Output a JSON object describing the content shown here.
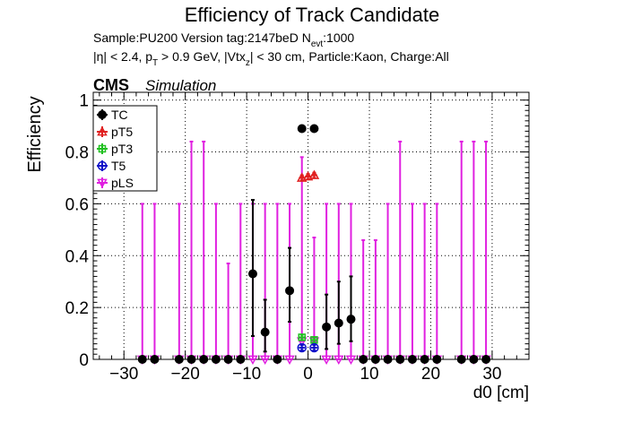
{
  "header": {
    "title": "Efficiency of Track Candidate",
    "sample_line": "Sample:PU200   Version tag:2147beD  N",
    "sample_sub": "evt",
    "sample_tail": ":1000",
    "cuts_line": "|η| < 2.4, p_T > 0.9 GeV, |Vtx_z| < 30 cm, Particle:Kaon, Charge:All",
    "cms": "CMS",
    "simulation": "Simulation"
  },
  "chart_data": {
    "type": "scatter",
    "title": "Efficiency of Track Candidate",
    "xlabel": "d0 [cm]",
    "ylabel": "Efficiency",
    "xlim": [
      -35,
      36
    ],
    "ylim": [
      0,
      1.03
    ],
    "grid": true,
    "legend_position": "top-left",
    "bin_width": 1.0,
    "x_ticks": [
      -30,
      -20,
      -10,
      0,
      10,
      20,
      30
    ],
    "x_tick_labels": [
      "−30",
      "−20",
      "−10",
      "0",
      "10",
      "20",
      "30"
    ],
    "y_ticks": [
      0,
      0.2,
      0.4,
      0.6,
      0.8,
      1
    ],
    "y_tick_labels": [
      "0",
      "0.2",
      "0.4",
      "0.6",
      "0.8",
      "1"
    ],
    "series": [
      {
        "name": "pLS",
        "color": "#e020e0",
        "marker": "triangle-down-open",
        "x": [
          -27,
          -25,
          -21,
          -19,
          -17,
          -15,
          -13,
          -11,
          -9,
          -7,
          -5,
          -3,
          -1,
          1,
          3,
          5,
          7,
          9,
          11,
          13,
          15,
          17,
          19,
          21,
          25,
          27,
          29
        ],
        "y": [
          0,
          0,
          0,
          0,
          0,
          0,
          0,
          0,
          0,
          0,
          0,
          0,
          0.07,
          0.07,
          0,
          0,
          0,
          0,
          0,
          0,
          0,
          0,
          0,
          0,
          0,
          0,
          0
        ],
        "err_up": [
          0.6,
          0.6,
          0.6,
          0.84,
          0.84,
          0.6,
          0.37,
          0.6,
          0.6,
          0.6,
          0.6,
          0.6,
          0.78,
          0.47,
          0.6,
          0.6,
          0.6,
          0.46,
          0.46,
          0.6,
          0.84,
          0.6,
          0.6,
          0.6,
          0.84,
          0.84,
          0.84
        ]
      },
      {
        "name": "pT3",
        "color": "#20c020",
        "marker": "square-open",
        "x": [
          -1,
          1
        ],
        "y": [
          0.085,
          0.075
        ],
        "err_up": [
          0.095,
          0.085
        ],
        "err_dn": [
          0.075,
          0.065
        ]
      },
      {
        "name": "T5",
        "color": "#1010c8",
        "marker": "circle-open",
        "x": [
          -1,
          1
        ],
        "y": [
          0.045,
          0.045
        ],
        "err_up": [
          0.055,
          0.055
        ],
        "err_dn": [
          0.035,
          0.035
        ]
      },
      {
        "name": "pT5",
        "color": "#e02020",
        "marker": "triangle-up-open",
        "x": [
          -1,
          0,
          1
        ],
        "y": [
          0.7,
          0.705,
          0.71
        ],
        "err_up": [
          0.71,
          0.715,
          0.72
        ],
        "err_dn": [
          0.69,
          0.695,
          0.7
        ]
      },
      {
        "name": "TC",
        "color": "#000000",
        "marker": "circle-filled",
        "x": [
          -27,
          -25,
          -21,
          -19,
          -17,
          -15,
          -13,
          -11,
          -9,
          -7,
          -5,
          -3,
          -1,
          1,
          3,
          5,
          7,
          9,
          11,
          13,
          15,
          17,
          19,
          21,
          25,
          27,
          29
        ],
        "y": [
          0,
          0,
          0,
          0,
          0,
          0,
          0,
          0,
          0.33,
          0.105,
          0,
          0.265,
          0.89,
          0.89,
          0.125,
          0.14,
          0.155,
          0,
          0,
          0,
          0,
          0,
          0,
          0,
          0,
          0,
          0
        ],
        "err_up": [
          0,
          0,
          0,
          0,
          0,
          0,
          0,
          0,
          0.615,
          0.23,
          0,
          0.43,
          0.9,
          0.9,
          0.25,
          0.3,
          0.32,
          0,
          0,
          0,
          0,
          0,
          0,
          0,
          0,
          0,
          0
        ],
        "err_dn": [
          0,
          0,
          0,
          0,
          0,
          0,
          0,
          0,
          0.09,
          0.03,
          0,
          0.145,
          0.88,
          0.88,
          0.04,
          0.06,
          0.07,
          0,
          0,
          0,
          0,
          0,
          0,
          0,
          0,
          0,
          0
        ]
      }
    ],
    "legend_order": [
      "TC",
      "pT5",
      "pT3",
      "T5",
      "pLS"
    ]
  }
}
